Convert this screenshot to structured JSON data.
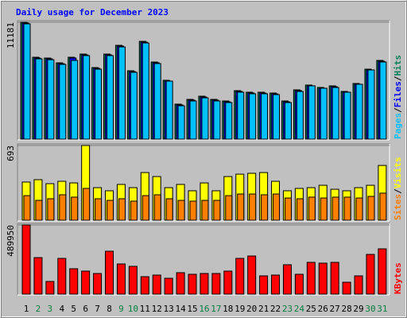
{
  "title": "Daily usage for December 2023",
  "legend_separator": "/",
  "chart_data": [
    {
      "type": "bar",
      "ylim": [
        0,
        11181
      ],
      "yticks": [
        11181
      ],
      "series": [
        {
          "name": "Hits",
          "color": "#00805c",
          "values": [
            11181,
            7834,
            7758,
            7302,
            7834,
            8138,
            6845,
            8138,
            8975,
            6541,
            9355,
            7378,
            5628,
            3347,
            3803,
            4107,
            3803,
            3651,
            4640,
            4488,
            4488,
            4411,
            3651,
            4716,
            5172,
            4944,
            5096,
            4564,
            5324,
            6693,
            7530
          ]
        },
        {
          "name": "Files",
          "color": "#0000ff",
          "values": [
            11100,
            7760,
            7680,
            7220,
            7760,
            8060,
            6770,
            8060,
            8900,
            6460,
            9280,
            7300,
            5550,
            3270,
            3730,
            4030,
            3730,
            3570,
            4560,
            4410,
            4410,
            4330,
            3570,
            4640,
            5100,
            4870,
            5020,
            4490,
            5250,
            6620,
            7450
          ]
        },
        {
          "name": "Pages",
          "color": "#00c0ff",
          "values": [
            11030,
            7680,
            7600,
            7150,
            7530,
            7990,
            6690,
            7990,
            8820,
            6390,
            9200,
            7230,
            5550,
            3190,
            3650,
            3950,
            3650,
            3500,
            4490,
            4340,
            4340,
            4260,
            3500,
            4560,
            5100,
            4870,
            4940,
            4490,
            5250,
            6620,
            7380
          ]
        }
      ]
    },
    {
      "type": "bar",
      "ylim": [
        0,
        693
      ],
      "yticks": [
        693
      ],
      "series": [
        {
          "name": "Visits",
          "color": "#ffff00",
          "values": [
            354,
            376,
            339,
            361,
            346,
            693,
            302,
            273,
            332,
            302,
            442,
            405,
            302,
            332,
            273,
            346,
            273,
            405,
            427,
            435,
            442,
            361,
            273,
            295,
            302,
            324,
            287,
            273,
            302,
            324,
            508
          ]
        },
        {
          "name": "Sites",
          "color": "#ff8000",
          "values": [
            228,
            184,
            199,
            236,
            214,
            295,
            199,
            184,
            199,
            177,
            228,
            236,
            199,
            184,
            177,
            184,
            184,
            228,
            243,
            243,
            236,
            243,
            206,
            199,
            214,
            206,
            214,
            214,
            206,
            221,
            251
          ]
        }
      ]
    },
    {
      "type": "bar",
      "ylim": [
        0,
        489950
      ],
      "yticks": [
        489950
      ],
      "categories": [
        "1",
        "2",
        "3",
        "4",
        "5",
        "6",
        "7",
        "8",
        "9",
        "10",
        "11",
        "12",
        "13",
        "14",
        "15",
        "16",
        "17",
        "18",
        "19",
        "20",
        "21",
        "22",
        "23",
        "24",
        "25",
        "26",
        "27",
        "28",
        "29",
        "30",
        "31"
      ],
      "weekends": [
        "2",
        "3",
        "9",
        "10",
        "16",
        "17",
        "23",
        "24",
        "30",
        "31"
      ],
      "weekend_color": "#008040",
      "series": [
        {
          "name": "KBytes",
          "color": "#ff0000",
          "values": [
            489950,
            259000,
            90100,
            253400,
            180200,
            163300,
            146400,
            304100,
            214000,
            197100,
            123900,
            135200,
            112600,
            152100,
            140800,
            146400,
            146400,
            163300,
            253400,
            270300,
            129500,
            135200,
            208400,
            140800,
            225300,
            219600,
            225300,
            84500,
            129500,
            281600,
            321000
          ]
        }
      ]
    }
  ]
}
